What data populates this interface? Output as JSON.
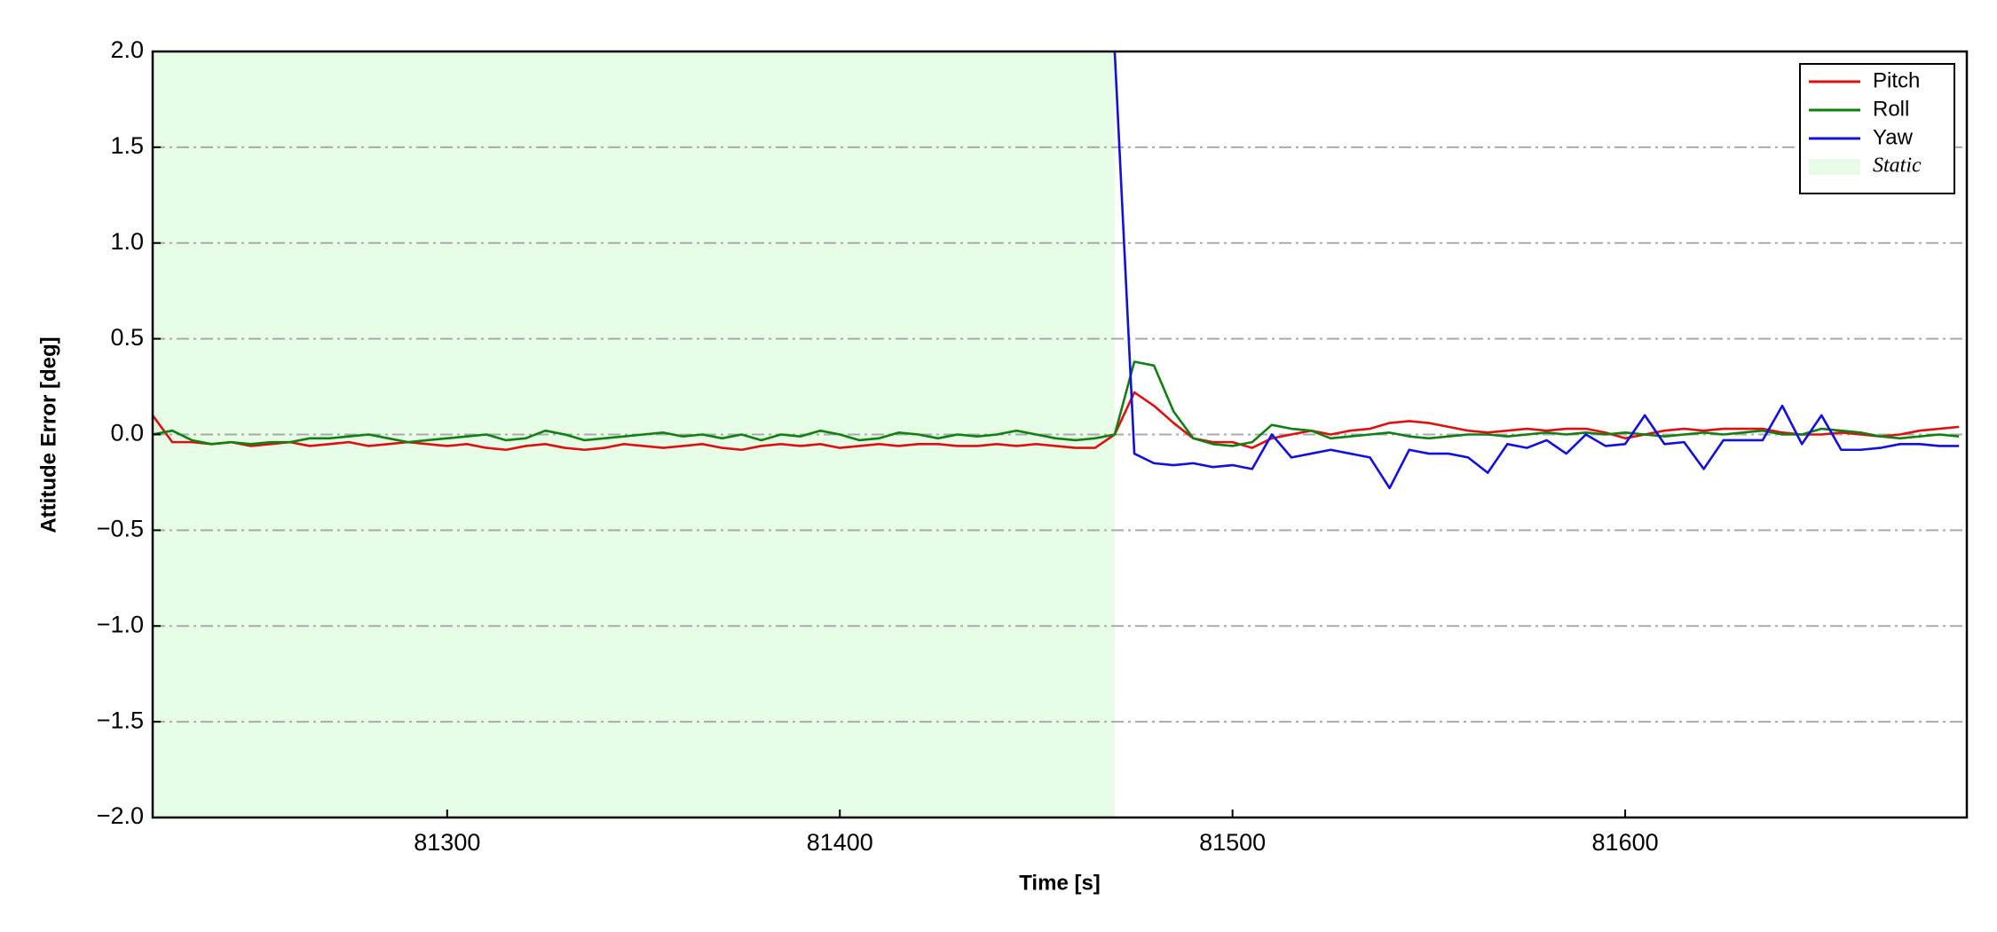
{
  "chart_data": {
    "type": "line",
    "xlabel": "Time [s]",
    "ylabel": "Attitude Error [deg]",
    "xlim": [
      81225,
      81687
    ],
    "ylim": [
      -2.0,
      2.0
    ],
    "xticks": [
      81300,
      81400,
      81500,
      81600
    ],
    "yticks": [
      {
        "value": -2.0,
        "label": "−2.0"
      },
      {
        "value": -1.5,
        "label": "−1.5"
      },
      {
        "value": -1.0,
        "label": "−1.0"
      },
      {
        "value": -0.5,
        "label": "−0.5"
      },
      {
        "value": 0.0,
        "label": "0.0"
      },
      {
        "value": 0.5,
        "label": "0.5"
      },
      {
        "value": 1.0,
        "label": "1.0"
      },
      {
        "value": 1.5,
        "label": "1.5"
      },
      {
        "value": 2.0,
        "label": "2.0"
      }
    ],
    "grid": true,
    "legend": "upper right",
    "shaded_regions": [
      {
        "label": "Static",
        "xlim": [
          81225,
          81470
        ],
        "color": "#e6fce6"
      }
    ],
    "x": [
      81225,
      81230,
      81235,
      81240,
      81245,
      81250,
      81255,
      81260,
      81265,
      81270,
      81275,
      81280,
      81285,
      81290,
      81295,
      81300,
      81305,
      81310,
      81315,
      81320,
      81325,
      81330,
      81335,
      81340,
      81345,
      81350,
      81355,
      81360,
      81365,
      81370,
      81375,
      81380,
      81385,
      81390,
      81395,
      81400,
      81405,
      81410,
      81415,
      81420,
      81425,
      81430,
      81435,
      81440,
      81445,
      81450,
      81455,
      81460,
      81465,
      81470,
      81475,
      81480,
      81485,
      81490,
      81495,
      81500,
      81505,
      81510,
      81515,
      81520,
      81525,
      81530,
      81535,
      81540,
      81545,
      81550,
      81555,
      81560,
      81565,
      81570,
      81575,
      81580,
      81585,
      81590,
      81595,
      81600,
      81605,
      81610,
      81615,
      81620,
      81625,
      81630,
      81635,
      81640,
      81645,
      81650,
      81655,
      81660,
      81665,
      81670,
      81675,
      81680,
      81685
    ],
    "series": [
      {
        "name": "Pitch",
        "color": "#e01010",
        "values": [
          0.1,
          -0.04,
          -0.04,
          -0.05,
          -0.04,
          -0.06,
          -0.05,
          -0.04,
          -0.06,
          -0.05,
          -0.04,
          -0.06,
          -0.05,
          -0.04,
          -0.05,
          -0.06,
          -0.05,
          -0.07,
          -0.08,
          -0.06,
          -0.05,
          -0.07,
          -0.08,
          -0.07,
          -0.05,
          -0.06,
          -0.07,
          -0.06,
          -0.05,
          -0.07,
          -0.08,
          -0.06,
          -0.05,
          -0.06,
          -0.05,
          -0.07,
          -0.06,
          -0.05,
          -0.06,
          -0.05,
          -0.05,
          -0.06,
          -0.06,
          -0.05,
          -0.06,
          -0.05,
          -0.06,
          -0.07,
          -0.07,
          0.0,
          0.22,
          0.15,
          0.06,
          -0.02,
          -0.04,
          -0.04,
          -0.07,
          -0.02,
          0.0,
          0.02,
          0.0,
          0.02,
          0.03,
          0.06,
          0.07,
          0.06,
          0.04,
          0.02,
          0.01,
          0.02,
          0.03,
          0.02,
          0.03,
          0.03,
          0.01,
          -0.02,
          0.0,
          0.02,
          0.03,
          0.02,
          0.03,
          0.03,
          0.03,
          0.01,
          0.0,
          0.0,
          0.01,
          0.0,
          -0.01,
          0.0,
          0.02,
          0.03,
          0.04
        ]
      },
      {
        "name": "Roll",
        "color": "#108010",
        "values": [
          0.0,
          0.02,
          -0.03,
          -0.05,
          -0.04,
          -0.05,
          -0.04,
          -0.04,
          -0.02,
          -0.02,
          -0.01,
          0.0,
          -0.02,
          -0.04,
          -0.03,
          -0.02,
          -0.01,
          0.0,
          -0.03,
          -0.02,
          0.02,
          0.0,
          -0.03,
          -0.02,
          -0.01,
          0.0,
          0.01,
          -0.01,
          0.0,
          -0.02,
          0.0,
          -0.03,
          0.0,
          -0.01,
          0.02,
          0.0,
          -0.03,
          -0.02,
          0.01,
          0.0,
          -0.02,
          0.0,
          -0.01,
          0.0,
          0.02,
          0.0,
          -0.02,
          -0.03,
          -0.02,
          0.0,
          0.38,
          0.36,
          0.12,
          -0.02,
          -0.05,
          -0.06,
          -0.04,
          0.05,
          0.03,
          0.02,
          -0.02,
          -0.01,
          0.0,
          0.01,
          -0.01,
          -0.02,
          -0.01,
          0.0,
          0.0,
          -0.01,
          0.0,
          0.01,
          0.0,
          0.01,
          0.0,
          0.01,
          0.0,
          -0.01,
          0.0,
          0.01,
          0.0,
          0.01,
          0.02,
          0.0,
          0.0,
          0.03,
          0.02,
          0.01,
          -0.01,
          -0.02,
          -0.01,
          0.0,
          -0.01
        ]
      },
      {
        "name": "Yaw",
        "color": "#1010e0",
        "values": [
          null,
          null,
          null,
          null,
          null,
          null,
          null,
          null,
          null,
          null,
          null,
          null,
          null,
          null,
          null,
          null,
          null,
          null,
          null,
          null,
          null,
          null,
          null,
          null,
          null,
          null,
          null,
          null,
          null,
          null,
          null,
          null,
          null,
          null,
          null,
          null,
          null,
          null,
          null,
          null,
          null,
          null,
          null,
          null,
          null,
          null,
          null,
          null,
          null,
          2.0,
          -0.1,
          -0.15,
          -0.16,
          -0.15,
          -0.17,
          -0.16,
          -0.18,
          0.0,
          -0.12,
          -0.1,
          -0.08,
          -0.1,
          -0.12,
          -0.28,
          -0.08,
          -0.1,
          -0.1,
          -0.12,
          -0.2,
          -0.05,
          -0.07,
          -0.03,
          -0.1,
          0.0,
          -0.06,
          -0.05,
          0.1,
          -0.05,
          -0.04,
          -0.18,
          -0.03,
          -0.03,
          -0.03,
          0.15,
          -0.05,
          0.1,
          -0.08,
          -0.08,
          -0.07,
          -0.05,
          -0.05,
          -0.06,
          -0.06
        ]
      }
    ]
  }
}
